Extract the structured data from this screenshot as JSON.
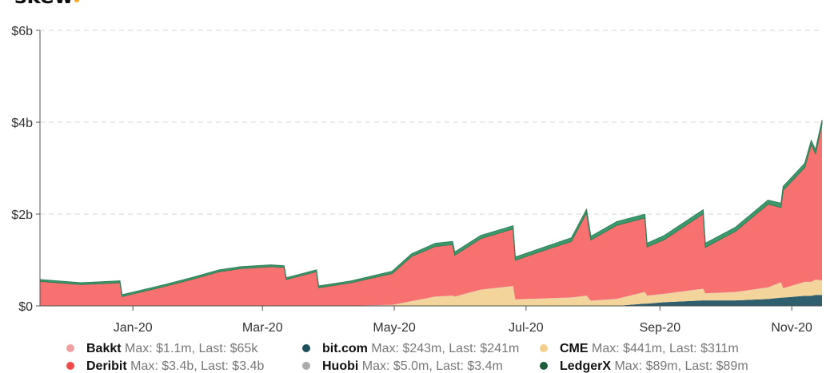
{
  "logo": {
    "text": "skew",
    "dot_color": "#f5a623"
  },
  "chart_data": {
    "type": "area",
    "stacked": true,
    "x_range": [
      "2019-11-19",
      "2020-11-15"
    ],
    "ylim": [
      0,
      6
    ],
    "y_ticks": [
      {
        "v": 0,
        "label": "$0"
      },
      {
        "v": 2,
        "label": "$2b"
      },
      {
        "v": 4,
        "label": "$4b"
      },
      {
        "v": 6,
        "label": "$6b"
      }
    ],
    "x_ticks": [
      {
        "date": "2020-01-01",
        "label": "Jan-20"
      },
      {
        "date": "2020-03-01",
        "label": "Mar-20"
      },
      {
        "date": "2020-05-01",
        "label": "May-20"
      },
      {
        "date": "2020-07-01",
        "label": "Jul-20"
      },
      {
        "date": "2020-09-01",
        "label": "Sep-20"
      },
      {
        "date": "2020-11-01",
        "label": "Nov-20"
      }
    ],
    "grid": "horizontal-dashed",
    "legend_placement": "bottom",
    "dates": [
      "2019-11-19",
      "2019-12-08",
      "2019-12-26",
      "2019-12-27",
      "2020-01-14",
      "2020-01-28",
      "2020-02-10",
      "2020-02-20",
      "2020-03-05",
      "2020-03-11",
      "2020-03-12",
      "2020-03-26",
      "2020-03-27",
      "2020-04-11",
      "2020-04-30",
      "2020-05-09",
      "2020-05-20",
      "2020-05-28",
      "2020-05-29",
      "2020-06-10",
      "2020-06-25",
      "2020-06-26",
      "2020-07-09",
      "2020-07-22",
      "2020-07-29",
      "2020-07-31",
      "2020-08-12",
      "2020-08-25",
      "2020-08-26",
      "2020-09-03",
      "2020-09-21",
      "2020-09-22",
      "2020-10-06",
      "2020-10-21",
      "2020-10-27",
      "2020-10-28",
      "2020-11-07",
      "2020-11-10",
      "2020-11-12",
      "2020-11-15"
    ],
    "series": [
      {
        "name": "bit.com",
        "color": "#2f5f6e",
        "values": [
          0,
          0,
          0,
          0,
          0,
          0,
          0,
          0,
          0,
          0,
          0,
          0,
          0,
          0,
          0,
          0,
          0,
          0,
          0,
          0,
          0,
          0,
          0,
          0,
          0,
          0,
          0,
          0.05,
          0.05,
          0.08,
          0.12,
          0.12,
          0.12,
          0.15,
          0.18,
          0.18,
          0.22,
          0.22,
          0.24,
          0.24
        ]
      },
      {
        "name": "CME",
        "color": "#f3d49a",
        "values": [
          0,
          0,
          0,
          0,
          0,
          0,
          0,
          0,
          0,
          0,
          0,
          0,
          0,
          0,
          0.02,
          0.1,
          0.2,
          0.22,
          0.2,
          0.35,
          0.43,
          0.14,
          0.16,
          0.18,
          0.22,
          0.11,
          0.15,
          0.25,
          0.17,
          0.18,
          0.25,
          0.15,
          0.18,
          0.25,
          0.33,
          0.2,
          0.3,
          0.3,
          0.33,
          0.31
        ]
      },
      {
        "name": "Huobi",
        "color": "#aaaaaa",
        "values": [
          0.003,
          0.003,
          0.003,
          0.003,
          0.003,
          0.003,
          0.003,
          0.003,
          0.003,
          0.003,
          0.003,
          0.003,
          0.003,
          0.003,
          0.003,
          0.003,
          0.003,
          0.003,
          0.003,
          0.003,
          0.003,
          0.003,
          0.003,
          0.003,
          0.003,
          0.003,
          0.003,
          0.003,
          0.003,
          0.003,
          0.003,
          0.003,
          0.003,
          0.003,
          0.003,
          0.003,
          0.003,
          0.003,
          0.003,
          0.003
        ]
      },
      {
        "name": "Bakkt",
        "color": "#f0a0a0",
        "values": [
          0.001,
          0.001,
          0.001,
          0.001,
          0.001,
          0.001,
          0.001,
          0.001,
          0.001,
          0.001,
          0.001,
          0.001,
          0.001,
          0.001,
          0.001,
          0.001,
          0.001,
          0.001,
          0.001,
          0.001,
          0.001,
          0.001,
          0.001,
          0.001,
          0.001,
          0.001,
          0.001,
          0.001,
          0.001,
          0.001,
          0.001,
          0.001,
          0.001,
          0.001,
          0.001,
          0.001,
          0.001,
          0.001,
          0.001,
          0.001
        ]
      },
      {
        "name": "Deribit",
        "color": "#f87171",
        "values": [
          0.53,
          0.46,
          0.5,
          0.2,
          0.4,
          0.57,
          0.74,
          0.81,
          0.85,
          0.83,
          0.57,
          0.74,
          0.39,
          0.5,
          0.68,
          0.97,
          1.09,
          1.11,
          0.9,
          1.11,
          1.24,
          0.85,
          1.04,
          1.22,
          1.8,
          1.32,
          1.6,
          1.61,
          1.06,
          1.18,
          1.63,
          1.0,
          1.32,
          1.81,
          1.63,
          2.13,
          2.49,
          2.99,
          2.74,
          3.4
        ]
      },
      {
        "name": "LedgerX",
        "color": "#3c9a6c",
        "values": [
          0.04,
          0.04,
          0.04,
          0.04,
          0.04,
          0.04,
          0.04,
          0.04,
          0.04,
          0.04,
          0.04,
          0.04,
          0.04,
          0.04,
          0.05,
          0.06,
          0.07,
          0.07,
          0.07,
          0.07,
          0.07,
          0.07,
          0.07,
          0.08,
          0.08,
          0.08,
          0.08,
          0.08,
          0.08,
          0.09,
          0.09,
          0.09,
          0.09,
          0.09,
          0.09,
          0.09,
          0.09,
          0.09,
          0.09,
          0.09
        ]
      }
    ],
    "legend": [
      {
        "name": "Bakkt",
        "color": "#f0a0a0",
        "text": "Max: $1.1m, Last: $65k"
      },
      {
        "name": "bit.com",
        "color": "#1d4f5c",
        "text": "Max: $243m, Last: $241m"
      },
      {
        "name": "CME",
        "color": "#f2cf8c",
        "text": "Max: $441m, Last: $311m"
      },
      {
        "name": "Deribit",
        "color": "#ef4b4b",
        "text": "Max: $3.4b, Last: $3.4b"
      },
      {
        "name": "Huobi",
        "color": "#aaaaaa",
        "text": "Max: $5.0m, Last: $3.4m"
      },
      {
        "name": "LedgerX",
        "color": "#1c5e3c",
        "text": "Max: $89m, Last: $89m"
      }
    ]
  }
}
